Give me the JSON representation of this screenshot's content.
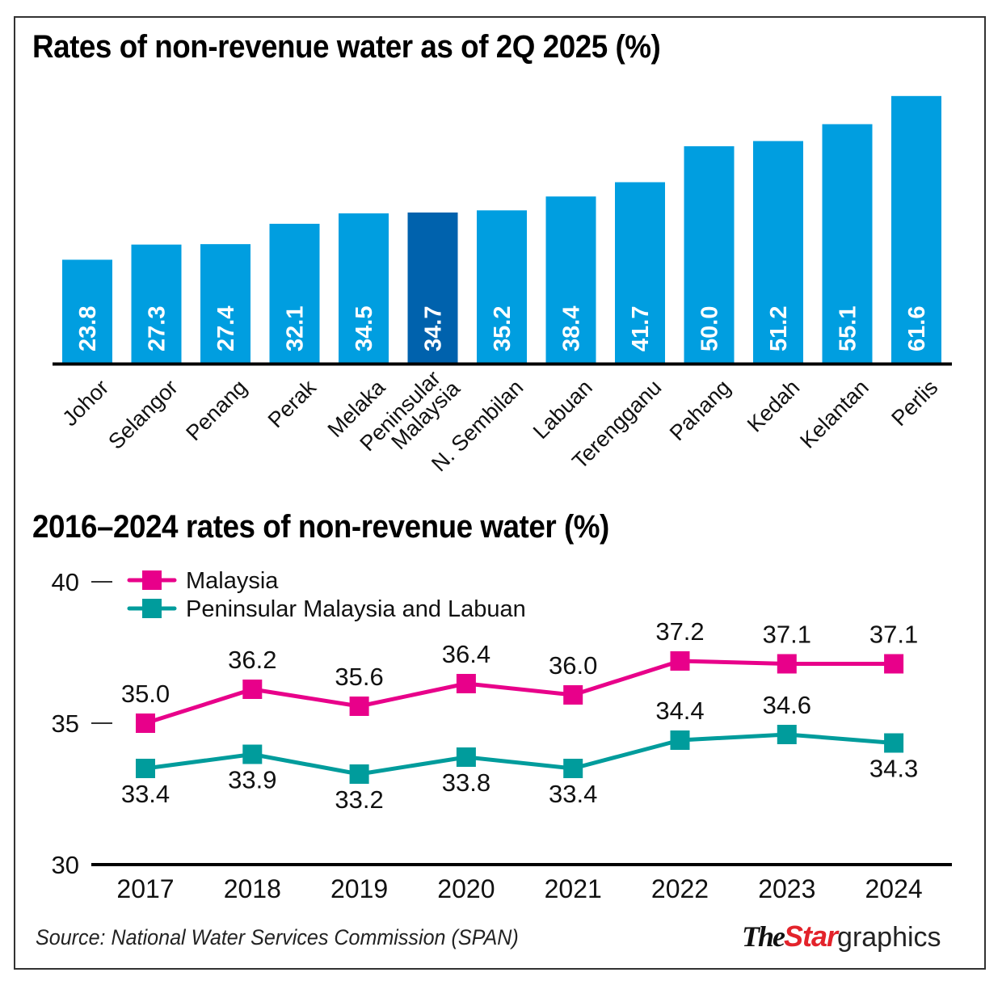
{
  "colors": {
    "bar": "#009ee0",
    "bar_highlight": "#0062ad",
    "malaysia_line": "#e8008a",
    "peninsular_line": "#009c9c",
    "axis": "#000000",
    "logo_accent": "#e3232b"
  },
  "chart_data": [
    {
      "type": "bar",
      "title": "Rates of non-revenue water as of 2Q 2025 (%)",
      "xlabel": "",
      "ylabel": "",
      "orientation": "vertical",
      "value_labels": "inside-bar-rotated",
      "categories": [
        "Johor",
        "Selangor",
        "Penang",
        "Perak",
        "Melaka",
        "Peninsular Malaysia",
        "N. Sembilan",
        "Labuan",
        "Terengganu",
        "Pahang",
        "Kedah",
        "Kelantan",
        "Perlis"
      ],
      "category_label_lines": [
        [
          "Johor"
        ],
        [
          "Selangor"
        ],
        [
          "Penang"
        ],
        [
          "Perak"
        ],
        [
          "Melaka"
        ],
        [
          "Peninsular",
          "Malaysia"
        ],
        [
          "N. Sembilan"
        ],
        [
          "Labuan"
        ],
        [
          "Terengganu"
        ],
        [
          "Pahang"
        ],
        [
          "Kedah"
        ],
        [
          "Kelantan"
        ],
        [
          "Perlis"
        ]
      ],
      "values": [
        23.8,
        27.3,
        27.4,
        32.1,
        34.5,
        34.7,
        35.2,
        38.4,
        41.7,
        50.0,
        51.2,
        55.1,
        61.6
      ],
      "value_text": [
        "23.8",
        "27.3",
        "27.4",
        "32.1",
        "34.5",
        "34.7",
        "35.2",
        "38.4",
        "41.7",
        "50.0",
        "51.2",
        "55.1",
        "61.6"
      ],
      "highlight": "Peninsular Malaysia",
      "ylim": [
        0,
        62
      ],
      "grid": false
    },
    {
      "type": "line",
      "title": "2016–2024 rates of non-revenue water (%)",
      "xlabel": "",
      "ylabel": "",
      "x": [
        "2017",
        "2018",
        "2019",
        "2020",
        "2021",
        "2022",
        "2023",
        "2024"
      ],
      "ylim": [
        30,
        40
      ],
      "yticks": [
        30,
        35,
        40
      ],
      "ytick_labels": [
        "30",
        "35",
        "40"
      ],
      "grid": false,
      "legend_position": "top-left",
      "marker": "square",
      "series": [
        {
          "name": "Malaysia",
          "values": [
            35.0,
            36.2,
            35.6,
            36.4,
            36.0,
            37.2,
            37.1,
            37.1
          ],
          "labels": [
            "35.0",
            "36.2",
            "35.6",
            "36.4",
            "36.0",
            "37.2",
            "37.1",
            "37.1"
          ],
          "label_position": "above"
        },
        {
          "name": "Peninsular Malaysia and Labuan",
          "values": [
            33.4,
            33.9,
            33.2,
            33.8,
            33.4,
            34.4,
            34.6,
            34.3
          ],
          "labels": [
            "33.4",
            "33.9",
            "33.2",
            "33.8",
            "33.4",
            "34.4",
            "34.6",
            "34.3"
          ],
          "label_position": [
            "below",
            "below",
            "below",
            "below",
            "below",
            "above",
            "above",
            "below"
          ]
        }
      ]
    }
  ],
  "footer": {
    "source": "Source: National Water Services Commission (SPAN)",
    "logo_the": "The",
    "logo_star": "Star",
    "logo_graphics": "graphics"
  }
}
